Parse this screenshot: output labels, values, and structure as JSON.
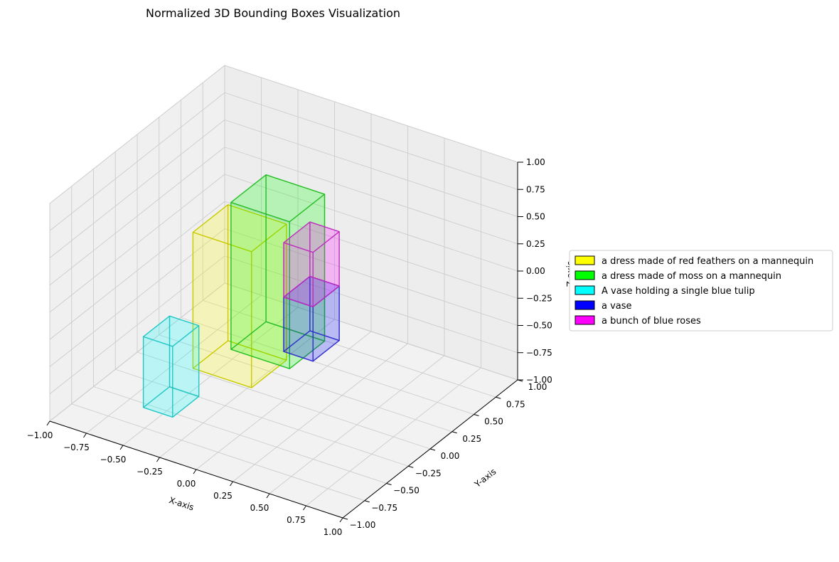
{
  "chart_data": {
    "type": "3d-box",
    "title": "Normalized 3D Bounding Boxes Visualization",
    "xlabel": "X-axis",
    "ylabel": "Y-axis",
    "zlabel": "Z-axis",
    "xlim": [
      -1,
      1
    ],
    "ylim": [
      -1,
      1
    ],
    "zlim": [
      -1,
      1
    ],
    "ticks": [
      -1.0,
      -0.75,
      -0.5,
      -0.25,
      0.0,
      0.25,
      0.5,
      0.75,
      1.0
    ],
    "tick_labels": [
      "−1.00",
      "−0.75",
      "−0.50",
      "−0.25",
      "0.00",
      "0.25",
      "0.50",
      "0.75",
      "1.00"
    ],
    "grid": true,
    "legend_position": "right",
    "boxes": [
      {
        "label": "a dress made of red feathers on a mannequin",
        "color": "#ffff00",
        "x": [
          -0.5,
          -0.1
        ],
        "y": [
          -0.2,
          0.2
        ],
        "z": [
          -0.8,
          0.45
        ]
      },
      {
        "label": "a dress made of moss on a mannequin",
        "color": "#00ff00",
        "x": [
          -0.3,
          0.1
        ],
        "y": [
          -0.1,
          0.3
        ],
        "z": [
          -0.6,
          0.75
        ]
      },
      {
        "label": "A vase holding a single blue tulip",
        "color": "#00ffff",
        "x": [
          -0.6,
          -0.4
        ],
        "y": [
          -0.6,
          -0.3
        ],
        "z": [
          -0.95,
          -0.3
        ]
      },
      {
        "label": "a vase",
        "color": "#0000ff",
        "x": [
          0.0,
          0.2
        ],
        "y": [
          0.0,
          0.3
        ],
        "z": [
          -0.55,
          -0.05
        ]
      },
      {
        "label": "a bunch of blue roses",
        "color": "#ff00ff",
        "x": [
          0.0,
          0.2
        ],
        "y": [
          0.0,
          0.3
        ],
        "z": [
          -0.05,
          0.45
        ]
      }
    ]
  }
}
